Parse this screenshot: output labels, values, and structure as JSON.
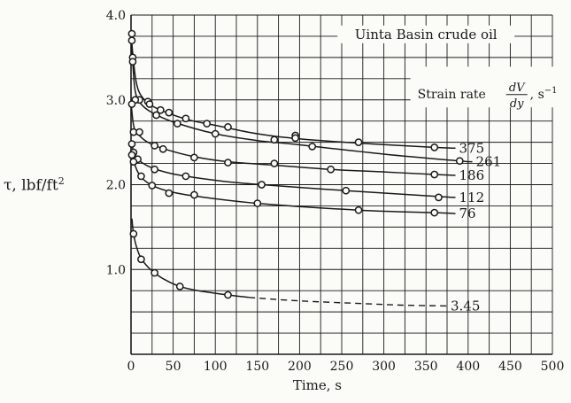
{
  "chart_data": {
    "type": "line",
    "title": "Uinta Basin crude oil",
    "xlabel": "Time, s",
    "ylabel": "τ, lbf/ft²",
    "ylabel_parts": {
      "symbol": "τ,",
      "unit": "lbf/ft",
      "exp": "2"
    },
    "xlim": [
      0,
      500
    ],
    "ylim": [
      0,
      4.0
    ],
    "x_ticks": [
      0,
      50,
      100,
      150,
      200,
      250,
      300,
      350,
      400,
      450,
      500
    ],
    "x_tick_labels": [
      "0",
      "50",
      "100",
      "150",
      "200",
      "250",
      "300",
      "350",
      "400",
      "450",
      "500"
    ],
    "y_ticks": [
      1.0,
      2.0,
      3.0,
      4.0
    ],
    "y_tick_labels": [
      "1.0",
      "2.0",
      "3.0",
      "4.0"
    ],
    "grid": true,
    "legend_title": "Strain rate",
    "legend_fraction": {
      "num": "dV",
      "den": "dy"
    },
    "legend_unit": ", s",
    "legend_unit_exp": "−1",
    "series": [
      {
        "name": "375",
        "points": [
          [
            1,
            3.78
          ],
          [
            2,
            3.5
          ],
          [
            10,
            3.0
          ],
          [
            20,
            2.98
          ],
          [
            35,
            2.88
          ],
          [
            45,
            2.85
          ],
          [
            65,
            2.78
          ],
          [
            90,
            2.72
          ],
          [
            115,
            2.68
          ],
          [
            170,
            2.53
          ],
          [
            195,
            2.58
          ],
          [
            270,
            2.5
          ],
          [
            360,
            2.44
          ]
        ],
        "curve": [
          [
            0,
            3.8
          ],
          [
            2,
            3.55
          ],
          [
            6,
            3.22
          ],
          [
            12,
            3.05
          ],
          [
            25,
            2.93
          ],
          [
            45,
            2.84
          ],
          [
            70,
            2.76
          ],
          [
            100,
            2.7
          ],
          [
            150,
            2.6
          ],
          [
            200,
            2.54
          ],
          [
            270,
            2.49
          ],
          [
            360,
            2.44
          ],
          [
            385,
            2.43
          ]
        ]
      },
      {
        "name": "261",
        "points": [
          [
            1,
            3.7
          ],
          [
            2,
            3.45
          ],
          [
            5,
            3.0
          ],
          [
            22,
            2.95
          ],
          [
            30,
            2.82
          ],
          [
            55,
            2.72
          ],
          [
            100,
            2.6
          ],
          [
            195,
            2.55
          ],
          [
            215,
            2.45
          ],
          [
            390,
            2.28
          ]
        ],
        "curve": [
          [
            0,
            3.72
          ],
          [
            2,
            3.45
          ],
          [
            5,
            3.1
          ],
          [
            12,
            2.95
          ],
          [
            25,
            2.85
          ],
          [
            50,
            2.74
          ],
          [
            100,
            2.6
          ],
          [
            150,
            2.52
          ],
          [
            200,
            2.47
          ],
          [
            300,
            2.36
          ],
          [
            390,
            2.28
          ],
          [
            405,
            2.27
          ]
        ]
      },
      {
        "name": "186",
        "points": [
          [
            1,
            2.95
          ],
          [
            3,
            2.62
          ],
          [
            10,
            2.62
          ],
          [
            28,
            2.46
          ],
          [
            38,
            2.42
          ],
          [
            75,
            2.32
          ],
          [
            115,
            2.26
          ],
          [
            170,
            2.25
          ],
          [
            237,
            2.18
          ],
          [
            360,
            2.12
          ]
        ],
        "curve": [
          [
            0,
            2.97
          ],
          [
            3,
            2.7
          ],
          [
            8,
            2.6
          ],
          [
            20,
            2.5
          ],
          [
            40,
            2.42
          ],
          [
            75,
            2.33
          ],
          [
            115,
            2.27
          ],
          [
            170,
            2.23
          ],
          [
            237,
            2.18
          ],
          [
            300,
            2.15
          ],
          [
            360,
            2.12
          ],
          [
            385,
            2.11
          ]
        ]
      },
      {
        "name": "112",
        "points": [
          [
            1,
            2.48
          ],
          [
            3,
            2.38
          ],
          [
            8,
            2.3
          ],
          [
            28,
            2.18
          ],
          [
            65,
            2.1
          ],
          [
            155,
            2.0
          ],
          [
            255,
            1.93
          ],
          [
            365,
            1.85
          ]
        ],
        "curve": [
          [
            0,
            2.5
          ],
          [
            3,
            2.4
          ],
          [
            8,
            2.3
          ],
          [
            20,
            2.22
          ],
          [
            40,
            2.15
          ],
          [
            65,
            2.1
          ],
          [
            110,
            2.04
          ],
          [
            155,
            2.0
          ],
          [
            255,
            1.93
          ],
          [
            365,
            1.86
          ],
          [
            385,
            1.85
          ]
        ]
      },
      {
        "name": "76",
        "points": [
          [
            1,
            2.35
          ],
          [
            3,
            2.27
          ],
          [
            12,
            2.1
          ],
          [
            25,
            1.99
          ],
          [
            45,
            1.9
          ],
          [
            75,
            1.88
          ],
          [
            150,
            1.78
          ],
          [
            270,
            1.7
          ],
          [
            360,
            1.67
          ]
        ],
        "curve": [
          [
            0,
            2.37
          ],
          [
            3,
            2.28
          ],
          [
            8,
            2.15
          ],
          [
            16,
            2.05
          ],
          [
            30,
            1.97
          ],
          [
            50,
            1.91
          ],
          [
            80,
            1.86
          ],
          [
            150,
            1.78
          ],
          [
            270,
            1.7
          ],
          [
            360,
            1.67
          ],
          [
            385,
            1.66
          ]
        ]
      },
      {
        "name": "3.45",
        "points": [
          [
            3,
            1.42
          ],
          [
            12,
            1.12
          ],
          [
            28,
            0.96
          ],
          [
            58,
            0.8
          ],
          [
            115,
            0.7
          ]
        ],
        "curve": [
          [
            1,
            1.6
          ],
          [
            3,
            1.42
          ],
          [
            7,
            1.25
          ],
          [
            12,
            1.13
          ],
          [
            20,
            1.03
          ],
          [
            28,
            0.96
          ],
          [
            40,
            0.88
          ],
          [
            58,
            0.8
          ],
          [
            80,
            0.75
          ],
          [
            115,
            0.7
          ],
          [
            140,
            0.67
          ]
        ],
        "dashed": [
          [
            140,
            0.67
          ],
          [
            200,
            0.63
          ],
          [
            270,
            0.6
          ],
          [
            320,
            0.58
          ],
          [
            375,
            0.57
          ]
        ]
      }
    ]
  }
}
